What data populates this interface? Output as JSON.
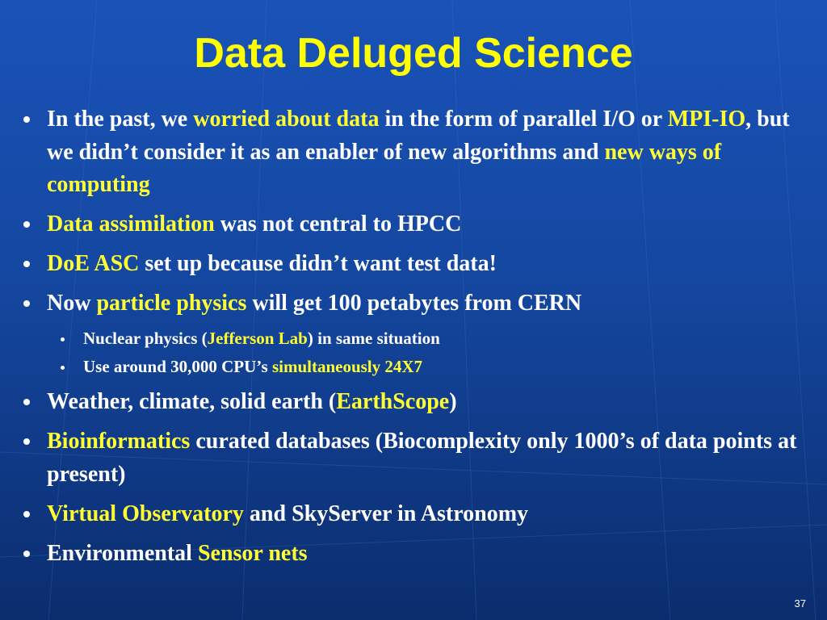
{
  "slide": {
    "title": "Data Deluged Science",
    "page_number": "37",
    "bullets": [
      {
        "level": 1,
        "runs": [
          {
            "text": "In the past, we ",
            "highlight": false
          },
          {
            "text": "worried about data",
            "highlight": true
          },
          {
            "text": " in the form of parallel I/O or ",
            "highlight": false
          },
          {
            "text": "MPI-IO",
            "highlight": true
          },
          {
            "text": ", but we didn’t  consider it as an enabler of new algorithms and ",
            "highlight": false
          },
          {
            "text": "new ways of computing",
            "highlight": true
          }
        ]
      },
      {
        "level": 1,
        "runs": [
          {
            "text": "Data assimilation",
            "highlight": true
          },
          {
            "text": " was not central to HPCC",
            "highlight": false
          }
        ]
      },
      {
        "level": 1,
        "runs": [
          {
            "text": "DoE ASC",
            "highlight": true
          },
          {
            "text": " set up because didn’t want test data!",
            "highlight": false
          }
        ]
      },
      {
        "level": 1,
        "runs": [
          {
            "text": "Now ",
            "highlight": false
          },
          {
            "text": "particle physics",
            "highlight": true
          },
          {
            "text": " will get 100 petabytes from CERN",
            "highlight": false
          }
        ]
      },
      {
        "level": 2,
        "runs": [
          {
            "text": "Nuclear physics (",
            "highlight": false
          },
          {
            "text": "Jefferson Lab",
            "highlight": true
          },
          {
            "text": ") in same situation",
            "highlight": false
          }
        ]
      },
      {
        "level": 2,
        "runs": [
          {
            "text": "Use  around 30,000 CPU’s ",
            "highlight": false
          },
          {
            "text": "simultaneously 24X7",
            "highlight": true
          }
        ]
      },
      {
        "level": 1,
        "runs": [
          {
            "text": "Weather, climate, solid earth (",
            "highlight": false
          },
          {
            "text": "EarthScope",
            "highlight": true
          },
          {
            "text": ")",
            "highlight": false
          }
        ]
      },
      {
        "level": 1,
        "runs": [
          {
            "text": "Bioinformatics",
            "highlight": true
          },
          {
            "text": " curated databases (Biocomplexity only 1000’s of data points at present)",
            "highlight": false
          }
        ]
      },
      {
        "level": 1,
        "runs": [
          {
            "text": "Virtual Observatory",
            "highlight": true
          },
          {
            "text": " and SkyServer in Astronomy",
            "highlight": false
          }
        ]
      },
      {
        "level": 1,
        "runs": [
          {
            "text": "Environmental ",
            "highlight": false
          },
          {
            "text": "Sensor nets",
            "highlight": true
          }
        ]
      }
    ]
  }
}
